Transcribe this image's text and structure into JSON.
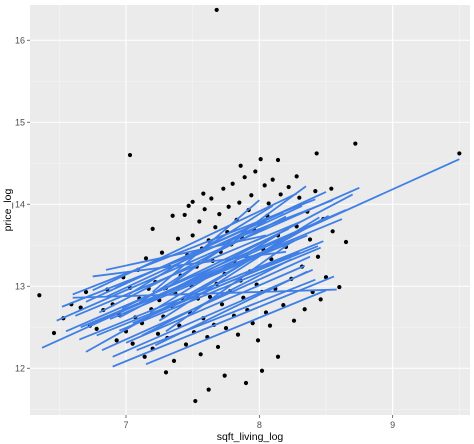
{
  "colors": {
    "panel_background": "#EBEBEB",
    "grid_major": "#FFFFFF",
    "grid_minor": "#F5F5F5",
    "point": "#000000",
    "line": "#3F7FE6",
    "tick": "#4D4D4D"
  },
  "chart_data": {
    "type": "scatter",
    "xlabel": "sqft_living_log",
    "ylabel": "price_log",
    "xlim": [
      6.28,
      9.58
    ],
    "ylim": [
      11.43,
      16.43
    ],
    "x_ticks": [
      {
        "value": 7,
        "label": "7"
      },
      {
        "value": 8,
        "label": "8"
      },
      {
        "value": 9,
        "label": "9"
      }
    ],
    "y_ticks": [
      {
        "value": 12,
        "label": "12"
      },
      {
        "value": 13,
        "label": "13"
      },
      {
        "value": 14,
        "label": "14"
      },
      {
        "value": 15,
        "label": "15"
      },
      {
        "value": 16,
        "label": "16"
      }
    ],
    "grid": true,
    "legend": "none",
    "series": [
      {
        "kind": "points",
        "points": [
          [
            7.68,
            16.37
          ],
          [
            9.5,
            14.62
          ],
          [
            8.72,
            14.74
          ],
          [
            8.43,
            14.62
          ],
          [
            8.14,
            14.54
          ],
          [
            7.03,
            14.6
          ],
          [
            6.35,
            12.89
          ],
          [
            6.46,
            12.43
          ],
          [
            6.53,
            12.61
          ],
          [
            6.59,
            12.78
          ],
          [
            6.66,
            12.74
          ],
          [
            6.7,
            12.93
          ],
          [
            6.73,
            12.52
          ],
          [
            6.78,
            12.48
          ],
          [
            6.83,
            12.71
          ],
          [
            6.86,
            12.96
          ],
          [
            6.9,
            12.78
          ],
          [
            6.93,
            12.34
          ],
          [
            6.95,
            12.65
          ],
          [
            6.98,
            13.11
          ],
          [
            7.0,
            12.45
          ],
          [
            7.03,
            12.98
          ],
          [
            7.05,
            12.3
          ],
          [
            7.07,
            12.62
          ],
          [
            7.09,
            13.2
          ],
          [
            7.1,
            12.85
          ],
          [
            7.12,
            12.55
          ],
          [
            7.14,
            12.14
          ],
          [
            7.15,
            13.34
          ],
          [
            7.17,
            12.97
          ],
          [
            7.19,
            12.72
          ],
          [
            7.2,
            12.24
          ],
          [
            7.22,
            13.05
          ],
          [
            7.24,
            12.42
          ],
          [
            7.25,
            12.83
          ],
          [
            7.27,
            13.41
          ],
          [
            7.28,
            12.63
          ],
          [
            7.3,
            12.98
          ],
          [
            7.31,
            12.37
          ],
          [
            7.33,
            13.23
          ],
          [
            7.34,
            12.76
          ],
          [
            7.36,
            12.09
          ],
          [
            7.37,
            12.91
          ],
          [
            7.39,
            13.58
          ],
          [
            7.4,
            12.52
          ],
          [
            7.41,
            13.13
          ],
          [
            7.43,
            12.83
          ],
          [
            7.44,
            13.87
          ],
          [
            7.45,
            12.29
          ],
          [
            7.46,
            13.38
          ],
          [
            7.48,
            12.68
          ],
          [
            7.49,
            13.01
          ],
          [
            7.5,
            13.62
          ],
          [
            7.51,
            12.44
          ],
          [
            7.52,
            11.6
          ],
          [
            7.53,
            13.24
          ],
          [
            7.54,
            12.85
          ],
          [
            7.55,
            13.79
          ],
          [
            7.56,
            12.17
          ],
          [
            7.57,
            13.46
          ],
          [
            7.58,
            12.61
          ],
          [
            7.59,
            13.94
          ],
          [
            7.6,
            13.12
          ],
          [
            7.61,
            12.38
          ],
          [
            7.62,
            13.56
          ],
          [
            7.63,
            12.87
          ],
          [
            7.64,
            14.07
          ],
          [
            7.65,
            13.31
          ],
          [
            7.66,
            12.53
          ],
          [
            7.67,
            13.72
          ],
          [
            7.68,
            13.03
          ],
          [
            7.69,
            12.26
          ],
          [
            7.7,
            13.88
          ],
          [
            7.71,
            13.42
          ],
          [
            7.72,
            12.78
          ],
          [
            7.73,
            14.19
          ],
          [
            7.74,
            13.15
          ],
          [
            7.75,
            12.49
          ],
          [
            7.76,
            13.66
          ],
          [
            7.77,
            13.97
          ],
          [
            7.78,
            12.94
          ],
          [
            7.79,
            13.51
          ],
          [
            7.8,
            14.25
          ],
          [
            7.81,
            12.64
          ],
          [
            7.82,
            13.28
          ],
          [
            7.83,
            13.81
          ],
          [
            7.84,
            12.41
          ],
          [
            7.85,
            14.02
          ],
          [
            7.86,
            13.07
          ],
          [
            7.87,
            13.59
          ],
          [
            7.88,
            12.86
          ],
          [
            7.89,
            14.33
          ],
          [
            7.9,
            13.37
          ],
          [
            7.91,
            12.71
          ],
          [
            7.92,
            13.93
          ],
          [
            7.93,
            13.18
          ],
          [
            7.94,
            14.11
          ],
          [
            7.95,
            12.55
          ],
          [
            7.96,
            13.69
          ],
          [
            7.97,
            14.4
          ],
          [
            7.98,
            13.02
          ],
          [
            7.99,
            12.34
          ],
          [
            8.0,
            13.77
          ],
          [
            8.01,
            14.55
          ],
          [
            8.02,
            12.93
          ],
          [
            8.03,
            13.45
          ],
          [
            8.04,
            14.23
          ],
          [
            8.05,
            12.68
          ],
          [
            8.06,
            13.86
          ],
          [
            8.07,
            14.01
          ],
          [
            8.08,
            12.52
          ],
          [
            8.09,
            13.33
          ],
          [
            8.1,
            14.3
          ],
          [
            8.12,
            12.97
          ],
          [
            8.14,
            13.62
          ],
          [
            8.16,
            14.12
          ],
          [
            8.18,
            12.77
          ],
          [
            8.2,
            13.48
          ],
          [
            8.22,
            14.21
          ],
          [
            8.24,
            13.09
          ],
          [
            8.26,
            12.58
          ],
          [
            8.28,
            13.73
          ],
          [
            8.3,
            14.08
          ],
          [
            8.32,
            13.24
          ],
          [
            8.34,
            12.72
          ],
          [
            8.36,
            13.91
          ],
          [
            8.38,
            13.57
          ],
          [
            8.4,
            12.93
          ],
          [
            8.42,
            14.16
          ],
          [
            8.44,
            13.36
          ],
          [
            8.46,
            12.84
          ],
          [
            8.48,
            13.82
          ],
          [
            8.5,
            13.11
          ],
          [
            8.55,
            13.67
          ],
          [
            8.6,
            12.99
          ],
          [
            8.65,
            13.54
          ],
          [
            7.2,
            13.7
          ],
          [
            7.35,
            13.86
          ],
          [
            7.5,
            14.03
          ],
          [
            7.62,
            11.74
          ],
          [
            7.74,
            11.91
          ],
          [
            8.02,
            11.97
          ],
          [
            7.9,
            11.82
          ],
          [
            7.3,
            11.95
          ],
          [
            8.14,
            12.14
          ],
          [
            7.47,
            13.98
          ],
          [
            7.58,
            14.13
          ],
          [
            7.86,
            14.47
          ],
          [
            8.28,
            14.34
          ],
          [
            8.54,
            14.19
          ]
        ]
      },
      {
        "kind": "lines",
        "segments": [
          [
            6.37,
            12.25,
            9.5,
            14.55
          ],
          [
            6.48,
            12.58,
            8.75,
            14.2
          ],
          [
            6.52,
            12.75,
            8.55,
            14.05
          ],
          [
            6.55,
            12.45,
            8.65,
            13.93
          ],
          [
            6.6,
            12.9,
            8.42,
            14.06
          ],
          [
            6.62,
            12.64,
            8.3,
            13.78
          ],
          [
            6.65,
            12.35,
            8.48,
            13.55
          ],
          [
            6.7,
            12.81,
            8.5,
            14.15
          ],
          [
            6.72,
            12.53,
            8.36,
            13.62
          ],
          [
            6.75,
            12.95,
            8.28,
            14.13
          ],
          [
            6.78,
            12.4,
            8.44,
            13.49
          ],
          [
            6.8,
            12.68,
            8.2,
            13.85
          ],
          [
            6.82,
            12.22,
            8.38,
            13.36
          ],
          [
            6.85,
            12.87,
            8.32,
            13.98
          ],
          [
            6.88,
            12.6,
            8.26,
            13.55
          ],
          [
            6.9,
            12.14,
            8.4,
            13.2
          ],
          [
            6.92,
            12.98,
            8.18,
            13.9
          ],
          [
            6.95,
            12.46,
            8.46,
            13.47
          ],
          [
            6.97,
            12.73,
            8.22,
            13.7
          ],
          [
            7.0,
            12.31,
            8.34,
            13.25
          ],
          [
            7.02,
            12.9,
            8.1,
            13.98
          ],
          [
            7.05,
            12.55,
            8.3,
            13.42
          ],
          [
            7.08,
            12.22,
            8.42,
            13.08
          ],
          [
            7.1,
            12.8,
            8.05,
            13.8
          ],
          [
            7.12,
            12.4,
            8.24,
            13.33
          ],
          [
            7.15,
            12.05,
            8.5,
            12.95
          ],
          [
            7.18,
            12.68,
            8.14,
            13.63
          ],
          [
            7.2,
            12.93,
            8.0,
            14.05
          ],
          [
            7.22,
            12.28,
            8.36,
            13.18
          ],
          [
            7.25,
            12.58,
            8.12,
            13.49
          ],
          [
            6.6,
            12.86,
            8.58,
            12.96
          ],
          [
            6.75,
            13.12,
            8.2,
            13.42
          ],
          [
            6.85,
            13.2,
            8.05,
            13.62
          ],
          [
            6.7,
            12.2,
            8.52,
            13.86
          ],
          [
            6.66,
            12.5,
            8.62,
            13.82
          ],
          [
            6.9,
            12.02,
            8.56,
            13.12
          ],
          [
            7.3,
            12.45,
            8.25,
            13.55
          ],
          [
            7.35,
            12.75,
            8.45,
            13.84
          ],
          [
            7.28,
            12.95,
            8.35,
            14.22
          ],
          [
            6.95,
            12.62,
            8.7,
            14.12
          ]
        ]
      }
    ]
  }
}
